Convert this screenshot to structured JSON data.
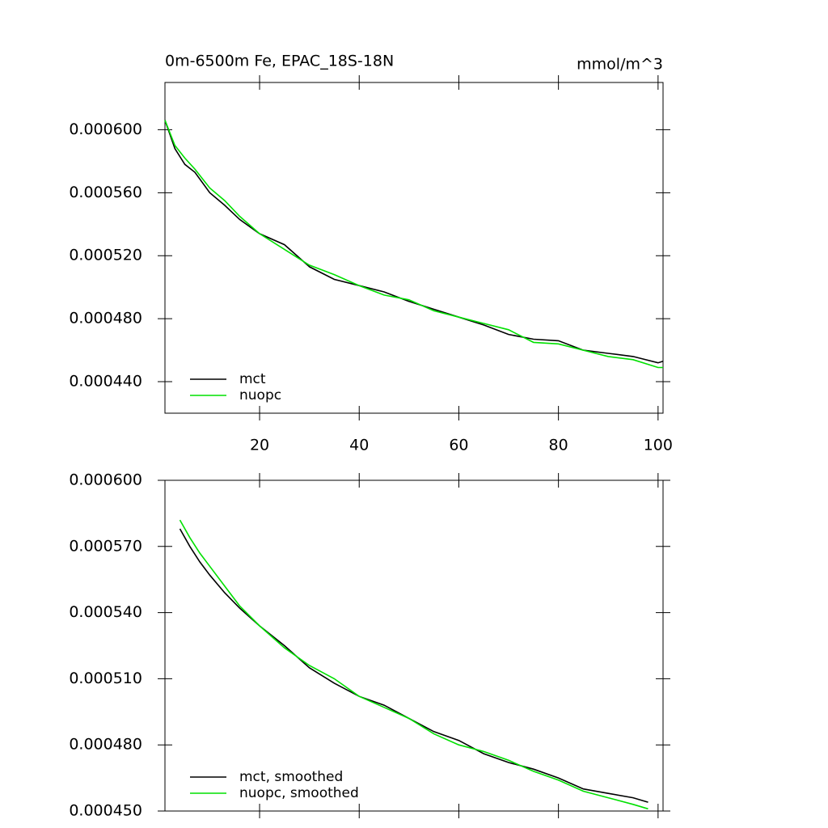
{
  "chart_data": [
    {
      "type": "line",
      "title": "0m-6500m Fe, EPAC_18S-18N",
      "units_label": "mmol/m^3",
      "x": [
        1,
        3,
        5,
        7,
        10,
        13,
        16,
        20,
        25,
        30,
        35,
        40,
        45,
        50,
        55,
        60,
        65,
        70,
        75,
        80,
        85,
        90,
        95,
        100,
        101
      ],
      "series": [
        {
          "name": "mct",
          "color": "#000000",
          "values": [
            0.000606,
            0.000588,
            0.000578,
            0.000573,
            0.00056,
            0.000552,
            0.000543,
            0.000534,
            0.000527,
            0.000513,
            0.000505,
            0.000501,
            0.000497,
            0.000491,
            0.000486,
            0.000481,
            0.000476,
            0.00047,
            0.000467,
            0.000466,
            0.00046,
            0.000458,
            0.000456,
            0.000452,
            0.000453
          ]
        },
        {
          "name": "nuopc",
          "color": "#00e000",
          "values": [
            0.000606,
            0.00059,
            0.000582,
            0.000575,
            0.000563,
            0.000555,
            0.000545,
            0.000534,
            0.000524,
            0.000514,
            0.000508,
            0.000501,
            0.000495,
            0.000492,
            0.000485,
            0.000481,
            0.000477,
            0.000473,
            0.000465,
            0.000464,
            0.00046,
            0.000456,
            0.000454,
            0.000449,
            0.000449
          ]
        }
      ],
      "xlim": [
        1,
        101
      ],
      "xticks": [
        20,
        40,
        60,
        80,
        100
      ],
      "show_xtick_labels": true,
      "ylim": [
        0.00042,
        0.00063
      ],
      "yticks": [
        {
          "value": 0.00044,
          "label": "0.000440"
        },
        {
          "value": 0.00048,
          "label": "0.000480"
        },
        {
          "value": 0.00052,
          "label": "0.000520"
        },
        {
          "value": 0.00056,
          "label": "0.000560"
        },
        {
          "value": 0.0006,
          "label": "0.000600"
        }
      ],
      "legend": "lower left"
    },
    {
      "type": "line",
      "x": [
        4,
        6,
        8,
        10,
        13,
        16,
        20,
        25,
        30,
        35,
        40,
        45,
        50,
        55,
        60,
        65,
        70,
        75,
        80,
        85,
        90,
        95,
        98
      ],
      "series": [
        {
          "name": "mct, smoothed",
          "color": "#000000",
          "values": [
            0.000578,
            0.00057,
            0.000563,
            0.000557,
            0.000549,
            0.000542,
            0.000534,
            0.000525,
            0.000515,
            0.000508,
            0.000502,
            0.000498,
            0.000492,
            0.000486,
            0.000482,
            0.000476,
            0.000472,
            0.000469,
            0.000465,
            0.00046,
            0.000458,
            0.000456,
            0.000454
          ]
        },
        {
          "name": "nuopc, smoothed",
          "color": "#00e000",
          "values": [
            0.000582,
            0.000574,
            0.000567,
            0.000561,
            0.000552,
            0.000543,
            0.000534,
            0.000524,
            0.000516,
            0.00051,
            0.000502,
            0.000497,
            0.000492,
            0.000485,
            0.00048,
            0.000477,
            0.000473,
            0.000468,
            0.000464,
            0.000459,
            0.000456,
            0.000453,
            0.000451
          ]
        }
      ],
      "xlim": [
        1,
        101
      ],
      "xticks": [
        20,
        40,
        60,
        80,
        100
      ],
      "show_xtick_labels": false,
      "ylim": [
        0.00045,
        0.0006
      ],
      "yticks": [
        {
          "value": 0.00045,
          "label": "0.000450"
        },
        {
          "value": 0.00048,
          "label": "0.000480"
        },
        {
          "value": 0.00051,
          "label": "0.000510"
        },
        {
          "value": 0.00054,
          "label": "0.000540"
        },
        {
          "value": 0.00057,
          "label": "0.000570"
        },
        {
          "value": 0.0006,
          "label": "0.000600"
        }
      ],
      "legend": "lower left"
    }
  ]
}
